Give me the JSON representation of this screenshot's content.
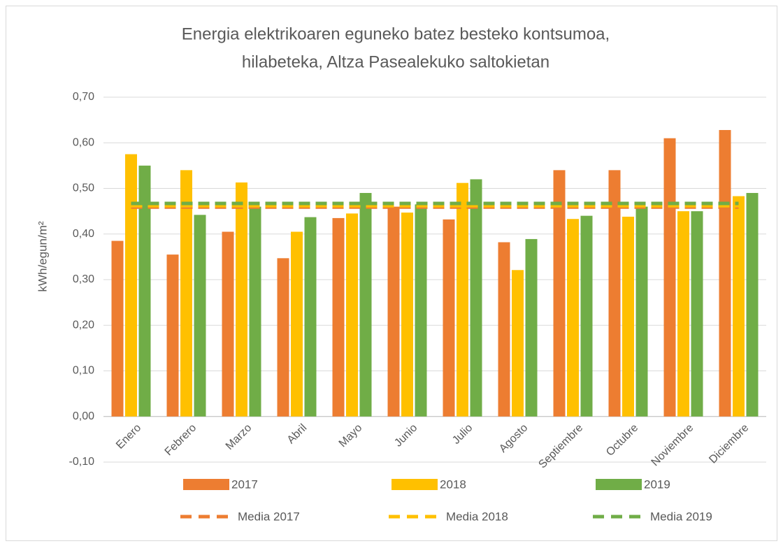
{
  "chart_data": {
    "type": "bar",
    "title": [
      "Energia elektrikoaren eguneko batez besteko kontsumoa,",
      "hilabeteka, Altza Pasealekuko saltokietan"
    ],
    "y_label": "kWh/egun/m²",
    "categories": [
      "Enero",
      "Febrero",
      "Marzo",
      "Abril",
      "Mayo",
      "Junio",
      "Julio",
      "Agosto",
      "Septiembre",
      "Octubre",
      "Noviembre",
      "Diciembre"
    ],
    "series": [
      {
        "name": "2017",
        "color": "#ED7D31",
        "type": "bar",
        "values": [
          0.385,
          0.355,
          0.405,
          0.347,
          0.435,
          0.46,
          0.432,
          0.382,
          0.54,
          0.54,
          0.61,
          0.628
        ]
      },
      {
        "name": "2018",
        "color": "#FFC000",
        "type": "bar",
        "values": [
          0.575,
          0.54,
          0.513,
          0.405,
          0.445,
          0.447,
          0.512,
          0.321,
          0.433,
          0.438,
          0.45,
          0.483
        ]
      },
      {
        "name": "2019",
        "color": "#70AD47",
        "type": "bar",
        "values": [
          0.55,
          0.442,
          0.46,
          0.437,
          0.49,
          0.465,
          0.52,
          0.389,
          0.44,
          0.46,
          0.45,
          0.49
        ]
      },
      {
        "name": "Media 2017",
        "color": "#ED7D31",
        "type": "line",
        "dashed": true,
        "values": [
          0.459,
          0.459,
          0.459,
          0.459,
          0.459,
          0.459,
          0.459,
          0.459,
          0.459,
          0.459,
          0.459,
          0.459
        ]
      },
      {
        "name": "Media 2018",
        "color": "#FFC000",
        "type": "line",
        "dashed": true,
        "values": [
          0.462,
          0.462,
          0.462,
          0.462,
          0.462,
          0.462,
          0.462,
          0.462,
          0.462,
          0.462,
          0.462,
          0.462
        ]
      },
      {
        "name": "Media 2019",
        "color": "#70AD47",
        "type": "line",
        "dashed": true,
        "values": [
          0.467,
          0.467,
          0.467,
          0.467,
          0.467,
          0.467,
          0.467,
          0.467,
          0.467,
          0.467,
          0.467,
          0.467
        ]
      }
    ],
    "ylim": [
      -0.1,
      0.7
    ],
    "yticks": [
      {
        "value": -0.1,
        "label": "-0,10"
      },
      {
        "value": 0,
        "label": "0,00"
      },
      {
        "value": 0.1,
        "label": "0,10"
      },
      {
        "value": 0.2,
        "label": "0,20"
      },
      {
        "value": 0.3,
        "label": "0,30"
      },
      {
        "value": 0.4,
        "label": "0,40"
      },
      {
        "value": 0.5,
        "label": "0,50"
      },
      {
        "value": 0.6,
        "label": "0,60"
      },
      {
        "value": 0.7,
        "label": "0,70"
      }
    ],
    "grid": true,
    "legend": "bottom"
  }
}
